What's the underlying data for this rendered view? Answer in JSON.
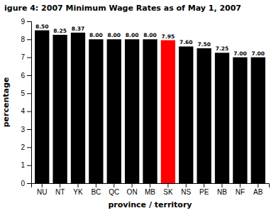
{
  "chart_data": {
    "type": "bar",
    "title": "igure 4: 2007 Minimum Wage Rates as of May 1, 2007",
    "xlabel": "province / territory",
    "ylabel": "percentage",
    "categories": [
      "NU",
      "NT",
      "YK",
      "BC",
      "QC",
      "ON",
      "MB",
      "SK",
      "NS",
      "PE",
      "NB",
      "NF",
      "AB"
    ],
    "values": [
      8.5,
      8.25,
      8.37,
      8.0,
      8.0,
      8.0,
      8.0,
      7.95,
      7.6,
      7.5,
      7.25,
      7.0,
      7.0
    ],
    "value_labels": [
      "8.50",
      "8.25",
      "8.37",
      "8.00",
      "8.00",
      "8.00",
      "8.00",
      "7.95",
      "7.60",
      "7.50",
      "7.25",
      "7.00",
      "7.00"
    ],
    "colors": [
      "#000000",
      "#000000",
      "#000000",
      "#000000",
      "#000000",
      "#000000",
      "#000000",
      "#ff0000",
      "#000000",
      "#000000",
      "#000000",
      "#000000",
      "#000000"
    ],
    "ylim": [
      0,
      9
    ],
    "yticks": [
      0,
      1,
      2,
      3,
      4,
      5,
      6,
      7,
      8,
      9
    ],
    "data_labels": true
  }
}
